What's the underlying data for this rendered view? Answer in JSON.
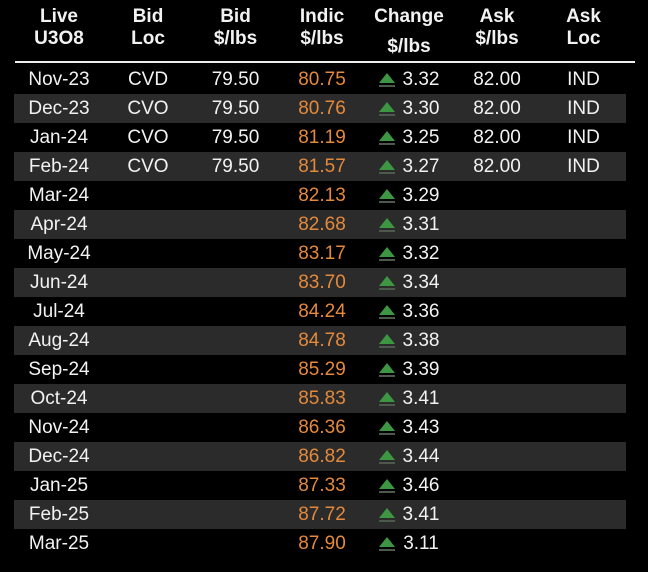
{
  "app": {
    "background_color": "#000000",
    "stripe_color": "#2b2b2b",
    "text_color": "#f2f2f2",
    "indic_orange": "#e5893b",
    "change_up_green": "#3d9641"
  },
  "icons": {
    "change_up_icon": "▲"
  },
  "table": {
    "header": {
      "columns": [
        {
          "line1": "Live",
          "line2": "U3O8"
        },
        {
          "line1": "Bid",
          "line2": "Loc"
        },
        {
          "line1": "Bid",
          "line2": "$/lbs"
        },
        {
          "line1": "Indic",
          "line2": "$/lbs"
        },
        {
          "line1": "Change",
          "line2": "$/lbs"
        },
        {
          "line1": "Ask",
          "line2": "$/lbs"
        },
        {
          "line1": "Ask",
          "line2": "Loc"
        }
      ]
    },
    "rows": [
      {
        "month": "Nov-23",
        "bid_loc": "CVD",
        "bid": "79.50",
        "indic": "80.75",
        "change": "3.32",
        "change_dir": "up",
        "ask": "82.00",
        "ask_loc": "IND",
        "striped": false
      },
      {
        "month": "Dec-23",
        "bid_loc": "CVO",
        "bid": "79.50",
        "indic": "80.76",
        "change": "3.30",
        "change_dir": "up",
        "ask": "82.00",
        "ask_loc": "IND",
        "striped": true
      },
      {
        "month": "Jan-24",
        "bid_loc": "CVO",
        "bid": "79.50",
        "indic": "81.19",
        "change": "3.25",
        "change_dir": "up",
        "ask": "82.00",
        "ask_loc": "IND",
        "striped": false
      },
      {
        "month": "Feb-24",
        "bid_loc": "CVO",
        "bid": "79.50",
        "indic": "81.57",
        "change": "3.27",
        "change_dir": "up",
        "ask": "82.00",
        "ask_loc": "IND",
        "striped": true
      },
      {
        "month": "Mar-24",
        "bid_loc": "",
        "bid": "",
        "indic": "82.13",
        "change": "3.29",
        "change_dir": "up",
        "ask": "",
        "ask_loc": "",
        "striped": false
      },
      {
        "month": "Apr-24",
        "bid_loc": "",
        "bid": "",
        "indic": "82.68",
        "change": "3.31",
        "change_dir": "up",
        "ask": "",
        "ask_loc": "",
        "striped": true
      },
      {
        "month": "May-24",
        "bid_loc": "",
        "bid": "",
        "indic": "83.17",
        "change": "3.32",
        "change_dir": "up",
        "ask": "",
        "ask_loc": "",
        "striped": false
      },
      {
        "month": "Jun-24",
        "bid_loc": "",
        "bid": "",
        "indic": "83.70",
        "change": "3.34",
        "change_dir": "up",
        "ask": "",
        "ask_loc": "",
        "striped": true
      },
      {
        "month": "Jul-24",
        "bid_loc": "",
        "bid": "",
        "indic": "84.24",
        "change": "3.36",
        "change_dir": "up",
        "ask": "",
        "ask_loc": "",
        "striped": false
      },
      {
        "month": "Aug-24",
        "bid_loc": "",
        "bid": "",
        "indic": "84.78",
        "change": "3.38",
        "change_dir": "up",
        "ask": "",
        "ask_loc": "",
        "striped": true
      },
      {
        "month": "Sep-24",
        "bid_loc": "",
        "bid": "",
        "indic": "85.29",
        "change": "3.39",
        "change_dir": "up",
        "ask": "",
        "ask_loc": "",
        "striped": false
      },
      {
        "month": "Oct-24",
        "bid_loc": "",
        "bid": "",
        "indic": "85.83",
        "change": "3.41",
        "change_dir": "up",
        "ask": "",
        "ask_loc": "",
        "striped": true
      },
      {
        "month": "Nov-24",
        "bid_loc": "",
        "bid": "",
        "indic": "86.36",
        "change": "3.43",
        "change_dir": "up",
        "ask": "",
        "ask_loc": "",
        "striped": false
      },
      {
        "month": "Dec-24",
        "bid_loc": "",
        "bid": "",
        "indic": "86.82",
        "change": "3.44",
        "change_dir": "up",
        "ask": "",
        "ask_loc": "",
        "striped": true
      },
      {
        "month": "Jan-25",
        "bid_loc": "",
        "bid": "",
        "indic": "87.33",
        "change": "3.46",
        "change_dir": "up",
        "ask": "",
        "ask_loc": "",
        "striped": false
      },
      {
        "month": "Feb-25",
        "bid_loc": "",
        "bid": "",
        "indic": "87.72",
        "change": "3.41",
        "change_dir": "up",
        "ask": "",
        "ask_loc": "",
        "striped": true
      },
      {
        "month": "Mar-25",
        "bid_loc": "",
        "bid": "",
        "indic": "87.90",
        "change": "3.11",
        "change_dir": "up",
        "ask": "",
        "ask_loc": "",
        "striped": false
      }
    ]
  }
}
